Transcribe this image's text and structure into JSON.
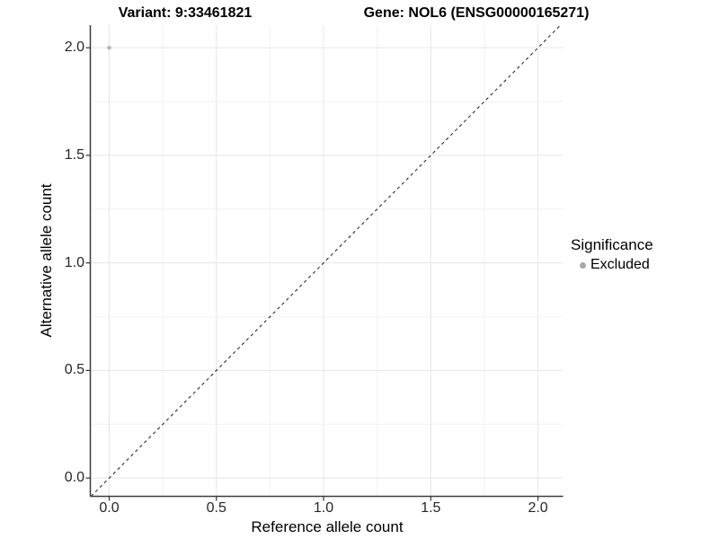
{
  "chart_data": {
    "type": "scatter",
    "titles": {
      "left": "Variant: 9:33461821",
      "right": "Gene: NOL6 (ENSG00000165271)"
    },
    "xlabel": "Reference allele count",
    "ylabel": "Alternative allele count",
    "x_ticks": [
      0.0,
      0.5,
      1.0,
      1.5,
      2.0
    ],
    "y_ticks": [
      0.0,
      0.5,
      1.0,
      1.5,
      2.0
    ],
    "minor_ticks": [
      0.25,
      0.75,
      1.25,
      1.75
    ],
    "xlim": [
      -0.088,
      2.117
    ],
    "ylim": [
      -0.085,
      2.105
    ],
    "tick_format_decimals": 1,
    "grid": "major+minor",
    "points": [
      {
        "x": 0.0,
        "y": 2.0,
        "significance": "Excluded"
      }
    ],
    "reference_line": {
      "type": "identity",
      "style": "dashed"
    },
    "legend": {
      "title": "Significance",
      "position": "right",
      "entries": [
        {
          "label": "Excluded",
          "color": "#a9a9a9"
        }
      ]
    },
    "colors": {
      "background": "#ffffff",
      "grid_major": "#e6e6e6",
      "grid_minor": "#f2f2f2",
      "axis_line": "#3c3c3c",
      "tick_mark": "#333333",
      "dashed_line": "#1a1a1a",
      "point": "#b5b5b5"
    }
  }
}
